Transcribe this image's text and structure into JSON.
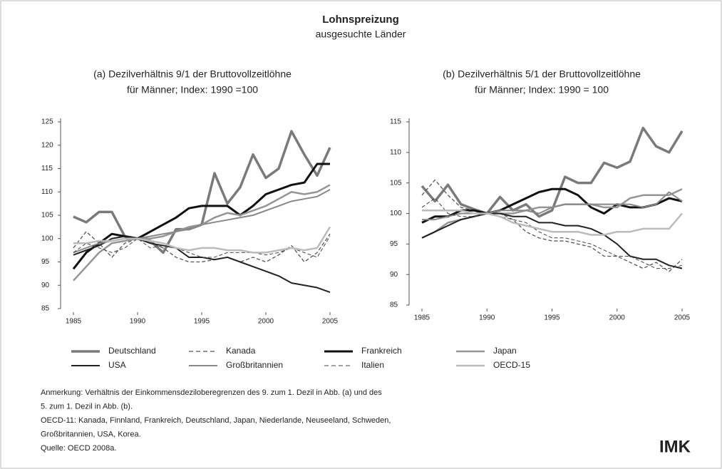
{
  "title": "Lohnspreizung",
  "subtitle": "ausgesuchte Länder",
  "chart_data": [
    {
      "type": "line",
      "title_lines": [
        "(a) Dezilverhältnis 9/1 der Bruttovollzeitlöhne",
        "für Männer; Index: 1990 =100"
      ],
      "x": [
        1985,
        1986,
        1987,
        1988,
        1989,
        1990,
        1991,
        1992,
        1993,
        1994,
        1995,
        1996,
        1997,
        1998,
        1999,
        2000,
        2001,
        2002,
        2003,
        2004,
        2005
      ],
      "xlim": [
        1985,
        2005
      ],
      "xticks": [
        1985,
        1990,
        1995,
        2000,
        2005
      ],
      "ylim": [
        85,
        125
      ],
      "yticks": [
        85,
        90,
        95,
        100,
        105,
        110,
        115,
        120,
        125
      ],
      "series": [
        {
          "name": "Deutschland",
          "color": "#7a7a7a",
          "line_width": 3.5,
          "dashed": false,
          "values": [
            104.7,
            103.5,
            105.7,
            105.7,
            100.5,
            100,
            99.5,
            97,
            102,
            102,
            103,
            114,
            107.5,
            111,
            118,
            113,
            115,
            123,
            118,
            113.5,
            119.5
          ]
        },
        {
          "name": "Kanada",
          "color": "#555555",
          "line_width": 1.3,
          "dashed": true,
          "values": [
            98,
            101.5,
            99,
            96,
            99,
            100,
            99,
            98,
            96,
            95,
            95,
            95.5,
            96,
            95,
            96,
            95,
            96.5,
            98.5,
            95,
            97,
            101
          ]
        },
        {
          "name": "Frankreich",
          "color": "#111111",
          "line_width": 3,
          "dashed": false,
          "values": [
            93.5,
            97,
            99,
            101,
            100.5,
            100,
            101.5,
            103,
            104.5,
            106.5,
            107,
            107,
            107,
            105,
            107,
            109.5,
            110.5,
            111.5,
            112,
            116,
            116
          ]
        },
        {
          "name": "Japan",
          "color": "#959595",
          "line_width": 2.5,
          "dashed": false,
          "values": [
            91,
            94,
            97,
            99,
            99.5,
            100,
            100,
            100.5,
            101.5,
            102.5,
            103,
            104.5,
            105.5,
            105,
            106,
            107,
            108.5,
            110,
            109.5,
            110,
            111.5
          ]
        },
        {
          "name": "USA",
          "color": "#222222",
          "line_width": 2,
          "dashed": false,
          "values": [
            96.5,
            97.5,
            98.5,
            100,
            100.5,
            100,
            99,
            98.5,
            98,
            96,
            96,
            95.5,
            96,
            95,
            94,
            93,
            92,
            90.5,
            90,
            89.5,
            88.5
          ]
        },
        {
          "name": "Großbritannien",
          "color": "#888888",
          "line_width": 2,
          "dashed": false,
          "values": [
            97,
            98,
            99,
            99.5,
            100,
            100,
            100.5,
            101,
            101.5,
            102,
            103,
            103.5,
            104,
            104.5,
            105,
            106,
            107,
            108,
            108.5,
            109,
            110.5
          ]
        },
        {
          "name": "Italien",
          "color": "#444444",
          "line_width": 1,
          "dashed": true,
          "values": [
            97,
            99,
            98,
            97,
            98,
            100,
            98,
            98.5,
            98,
            97,
            96,
            96,
            97,
            97,
            97,
            96.5,
            97,
            98,
            97,
            96,
            100.5
          ]
        },
        {
          "name": "OECD-15",
          "color": "#bbbbbb",
          "line_width": 2.5,
          "dashed": false,
          "values": [
            99,
            99,
            99.5,
            99.5,
            100,
            100,
            99.5,
            99,
            98,
            97.5,
            98,
            98,
            97.5,
            97.5,
            97,
            97,
            97.5,
            98,
            97.5,
            98,
            102.5
          ]
        }
      ]
    },
    {
      "type": "line",
      "title_lines": [
        "(b) Dezilverhältnis 5/1 der Bruttovollzeitlöhne",
        "für Männer; Index: 1990 = 100"
      ],
      "x": [
        1985,
        1986,
        1987,
        1988,
        1989,
        1990,
        1991,
        1992,
        1993,
        1994,
        1995,
        1996,
        1997,
        1998,
        1999,
        2000,
        2001,
        2002,
        2003,
        2004,
        2005
      ],
      "xlim": [
        1985,
        2005
      ],
      "xticks": [
        1985,
        1990,
        1995,
        2000,
        2005
      ],
      "ylim": [
        85,
        115
      ],
      "yticks": [
        85,
        90,
        95,
        100,
        105,
        110,
        115
      ],
      "series": [
        {
          "name": "Deutschland",
          "color": "#7a7a7a",
          "line_width": 3.5,
          "dashed": false,
          "values": [
            104.5,
            102,
            104.7,
            101.5,
            100.7,
            100,
            102.7,
            100.5,
            101.5,
            99.5,
            100.5,
            106,
            105,
            105,
            108.3,
            107.5,
            108.5,
            114,
            111,
            110,
            113.5
          ]
        },
        {
          "name": "Kanada",
          "color": "#555555",
          "line_width": 1.3,
          "dashed": true,
          "values": [
            103,
            105.5,
            103,
            101,
            100.5,
            100,
            100,
            99,
            97,
            96,
            95.5,
            95.5,
            95,
            94.5,
            93,
            93,
            92,
            91,
            92,
            90.5,
            92.5
          ]
        },
        {
          "name": "Frankreich",
          "color": "#111111",
          "line_width": 3,
          "dashed": false,
          "values": [
            98.5,
            99.5,
            99.5,
            100.5,
            100.5,
            100,
            100.5,
            101.5,
            102.5,
            103.5,
            104,
            104,
            103,
            101,
            100,
            101.5,
            101,
            101,
            101.5,
            102.5,
            102
          ]
        },
        {
          "name": "Japan",
          "color": "#959595",
          "line_width": 2.5,
          "dashed": false,
          "values": [
            96,
            97,
            98.5,
            99,
            99.5,
            100,
            100,
            100,
            100.5,
            101,
            101,
            101.5,
            101.5,
            101.5,
            101,
            101,
            102.5,
            103,
            103,
            103,
            104
          ]
        },
        {
          "name": "USA",
          "color": "#222222",
          "line_width": 2,
          "dashed": false,
          "values": [
            96,
            97,
            98,
            99,
            99.5,
            100,
            100,
            99.5,
            99.5,
            98.5,
            98.5,
            98,
            98,
            97.5,
            96.5,
            95,
            93,
            92.5,
            92.5,
            91.5,
            91
          ]
        },
        {
          "name": "Großbritannien",
          "color": "#888888",
          "line_width": 2,
          "dashed": false,
          "values": [
            99,
            99,
            99.5,
            100,
            100,
            100,
            100.5,
            100.5,
            100.5,
            100,
            101,
            101.5,
            101.5,
            101.5,
            101.5,
            101.5,
            101.5,
            101,
            101.5,
            103.5,
            102
          ]
        },
        {
          "name": "Italien",
          "color": "#444444",
          "line_width": 1,
          "dashed": true,
          "values": [
            101,
            102.5,
            100,
            99.5,
            99.5,
            100,
            99.5,
            99,
            98.5,
            97,
            96,
            96,
            95.5,
            95,
            94,
            93,
            93,
            92,
            91,
            91,
            91.5
          ]
        },
        {
          "name": "OECD-15",
          "color": "#bbbbbb",
          "line_width": 2.5,
          "dashed": false,
          "values": [
            100.5,
            100.5,
            100.5,
            100.5,
            100,
            100,
            99.5,
            98.5,
            98,
            97.5,
            97,
            97,
            97,
            96.5,
            96.5,
            97,
            97,
            97.5,
            97.5,
            97.5,
            100
          ]
        }
      ]
    }
  ],
  "notes": [
    "Anmerkung: Verhältnis der Einkommensdeziloberegrenzen des 9. zum 1. Dezil in Abb. (a) und des",
    "5. zum 1. Dezil in Abb. (b).",
    "OECD-11: Kanada, Finnland, Frankreich, Deutschland, Japan, Niederlande, Neuseeland, Schweden,",
    "Großbritannien, USA, Korea.",
    "Quelle: OECD 2008a."
  ],
  "logo": "IMK"
}
